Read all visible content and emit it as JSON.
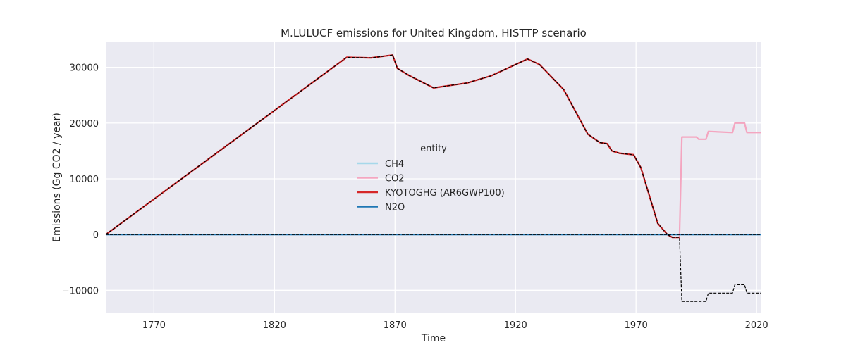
{
  "chart_data": {
    "type": "line",
    "title": "M.LULUCF emissions for United Kingdom, HISTTP scenario",
    "xlabel": "Time",
    "ylabel": "Emissions (Gg CO2 / year)",
    "xlim": [
      1750,
      2022
    ],
    "ylim": [
      -14000,
      34500
    ],
    "xticks": [
      1770,
      1820,
      1870,
      1920,
      1970,
      2020
    ],
    "yticks": [
      -10000,
      0,
      10000,
      20000,
      30000
    ],
    "ytick_labels": [
      "−10000",
      "0",
      "10000",
      "20000",
      "30000"
    ],
    "grid": true,
    "legend": {
      "title": "entity",
      "placement": "center"
    },
    "series": [
      {
        "name": "CH4",
        "color": "#a6d8ea",
        "style": "solid",
        "points": [
          [
            1750,
            0
          ],
          [
            2022,
            0
          ]
        ]
      },
      {
        "name": "CO2",
        "color": "#f4a6c0",
        "style": "solid",
        "points": [
          [
            1750,
            0
          ],
          [
            1850,
            31800
          ],
          [
            1860,
            31700
          ],
          [
            1869,
            32200
          ],
          [
            1871,
            29800
          ],
          [
            1876,
            28500
          ],
          [
            1886,
            26300
          ],
          [
            1900,
            27200
          ],
          [
            1910,
            28500
          ],
          [
            1925,
            31500
          ],
          [
            1930,
            30500
          ],
          [
            1940,
            26000
          ],
          [
            1950,
            18000
          ],
          [
            1955,
            16500
          ],
          [
            1958,
            16300
          ],
          [
            1960,
            15000
          ],
          [
            1963,
            14600
          ],
          [
            1969,
            14300
          ],
          [
            1972,
            12000
          ],
          [
            1979,
            2000
          ],
          [
            1983,
            0
          ],
          [
            1985,
            -500
          ],
          [
            1988,
            -500
          ],
          [
            1989,
            17500
          ],
          [
            1995,
            17500
          ],
          [
            1996,
            17100
          ],
          [
            1999,
            17100
          ],
          [
            2000,
            18500
          ],
          [
            2010,
            18300
          ],
          [
            2011,
            20000
          ],
          [
            2015,
            20000
          ],
          [
            2016,
            18300
          ],
          [
            2022,
            18300
          ]
        ]
      },
      {
        "name": "KYOTOGHG (AR6GWP100)",
        "color": "#d62728",
        "style": "solid",
        "points": [
          [
            1750,
            0
          ],
          [
            1850,
            31800
          ],
          [
            1860,
            31700
          ],
          [
            1869,
            32200
          ],
          [
            1871,
            29800
          ],
          [
            1876,
            28500
          ],
          [
            1886,
            26300
          ],
          [
            1900,
            27200
          ],
          [
            1910,
            28500
          ],
          [
            1925,
            31500
          ],
          [
            1930,
            30500
          ],
          [
            1940,
            26000
          ],
          [
            1950,
            18000
          ],
          [
            1955,
            16500
          ],
          [
            1958,
            16300
          ],
          [
            1960,
            15000
          ],
          [
            1963,
            14600
          ],
          [
            1969,
            14300
          ],
          [
            1972,
            12000
          ],
          [
            1979,
            2000
          ],
          [
            1983,
            0
          ],
          [
            1985,
            -500
          ],
          [
            1988,
            -500
          ]
        ]
      },
      {
        "name": "N2O",
        "color": "#1f77b4",
        "style": "solid",
        "points": [
          [
            1750,
            0
          ],
          [
            2022,
            0
          ]
        ]
      },
      {
        "name": "",
        "color": "#000000",
        "style": "dashed",
        "points": [
          [
            1750,
            0
          ],
          [
            1850,
            31800
          ],
          [
            1860,
            31700
          ],
          [
            1869,
            32200
          ],
          [
            1871,
            29800
          ],
          [
            1876,
            28500
          ],
          [
            1886,
            26300
          ],
          [
            1900,
            27200
          ],
          [
            1910,
            28500
          ],
          [
            1925,
            31500
          ],
          [
            1930,
            30500
          ],
          [
            1940,
            26000
          ],
          [
            1950,
            18000
          ],
          [
            1955,
            16500
          ],
          [
            1958,
            16300
          ],
          [
            1960,
            15000
          ],
          [
            1963,
            14600
          ],
          [
            1969,
            14300
          ],
          [
            1972,
            12000
          ],
          [
            1979,
            2000
          ],
          [
            1983,
            0
          ],
          [
            1985,
            -500
          ],
          [
            1988,
            -500
          ],
          [
            1989,
            -12000
          ],
          [
            1999,
            -12000
          ],
          [
            2000,
            -10500
          ],
          [
            2010,
            -10500
          ],
          [
            2011,
            -9000
          ],
          [
            2015,
            -9000
          ],
          [
            2016,
            -10500
          ],
          [
            2022,
            -10500
          ]
        ]
      },
      {
        "name": "",
        "color": "#000000",
        "style": "dashed",
        "points": [
          [
            1750,
            0
          ],
          [
            2022,
            0
          ]
        ]
      }
    ]
  }
}
